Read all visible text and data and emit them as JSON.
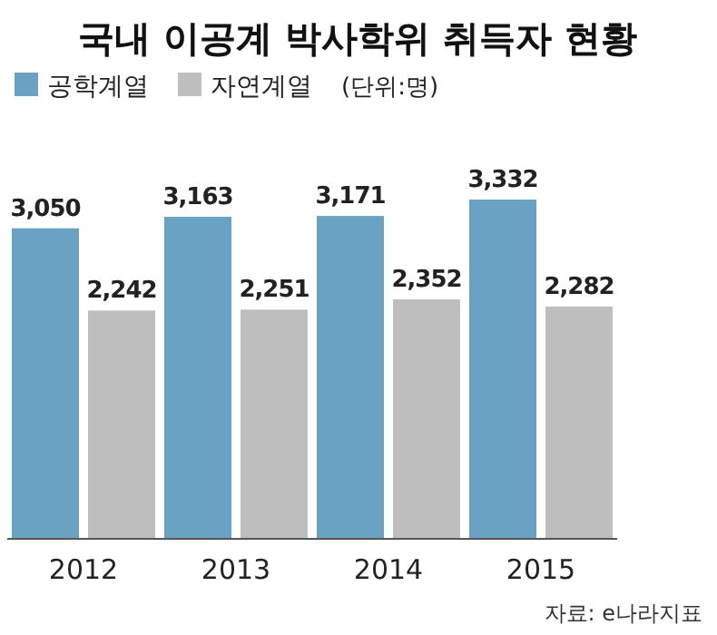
{
  "chart_data": {
    "type": "bar",
    "title": "국내 이공계 박사학위 취득자 현황",
    "subtitle": "(단위:명)",
    "categories": [
      "2012",
      "2013",
      "2014",
      "2015"
    ],
    "series": [
      {
        "name": "공학계열",
        "color": "#6aa3c2",
        "values": [
          3050,
          3163,
          3171,
          3332
        ],
        "value_labels": [
          "3,050",
          "3,163",
          "3,171",
          "3,332"
        ]
      },
      {
        "name": "자연계열",
        "color": "#bebebe",
        "values": [
          2242,
          2251,
          2352,
          2282
        ],
        "value_labels": [
          "2,242",
          "2,251",
          "2,352",
          "2,282"
        ]
      }
    ],
    "legend": "top left",
    "annotations": [
      "자료: e나라지표"
    ]
  }
}
